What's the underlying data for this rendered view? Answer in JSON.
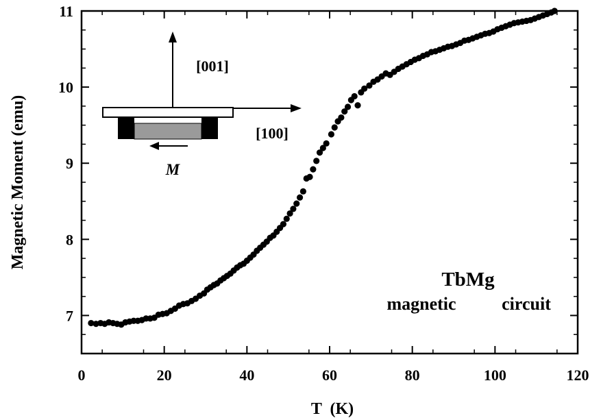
{
  "chart_data": {
    "type": "scatter",
    "xlabel": "T  (K)",
    "ylabel": "Magnetic Moment (emu)",
    "xlim": [
      0,
      120
    ],
    "ylim": [
      6.5,
      11
    ],
    "x_ticks": [
      0,
      20,
      40,
      60,
      80,
      100,
      120
    ],
    "y_ticks": [
      7,
      8,
      9,
      10,
      11
    ],
    "grid": false,
    "marker_color": "#000000",
    "annotations": {
      "sample": "TbMg",
      "mode_left": "magnetic",
      "mode_right": "circuit",
      "inset_axis_vertical": "[001]",
      "inset_axis_horizontal": "[100]",
      "inset_moment": "M"
    },
    "series": [
      {
        "points": [
          [
            2.3,
            6.9
          ],
          [
            3.5,
            6.89
          ],
          [
            4.6,
            6.9
          ],
          [
            5.6,
            6.89
          ],
          [
            6.6,
            6.91
          ],
          [
            7.6,
            6.9
          ],
          [
            8.6,
            6.89
          ],
          [
            9.6,
            6.88
          ],
          [
            10.6,
            6.91
          ],
          [
            11.6,
            6.92
          ],
          [
            12.6,
            6.93
          ],
          [
            13.6,
            6.93
          ],
          [
            14.6,
            6.94
          ],
          [
            15.6,
            6.96
          ],
          [
            16.6,
            6.96
          ],
          [
            17.6,
            6.97
          ],
          [
            18.6,
            7.01
          ],
          [
            19.6,
            7.02
          ],
          [
            20.6,
            7.03
          ],
          [
            21.6,
            7.06
          ],
          [
            22.6,
            7.09
          ],
          [
            23.6,
            7.13
          ],
          [
            24.6,
            7.15
          ],
          [
            25.6,
            7.16
          ],
          [
            26.6,
            7.19
          ],
          [
            27.6,
            7.22
          ],
          [
            28.6,
            7.26
          ],
          [
            29.6,
            7.29
          ],
          [
            30.4,
            7.34
          ],
          [
            31.2,
            7.37
          ],
          [
            32.0,
            7.4
          ],
          [
            32.8,
            7.42
          ],
          [
            33.6,
            7.46
          ],
          [
            34.4,
            7.49
          ],
          [
            35.2,
            7.52
          ],
          [
            36.0,
            7.55
          ],
          [
            36.8,
            7.59
          ],
          [
            37.6,
            7.63
          ],
          [
            38.4,
            7.66
          ],
          [
            39.2,
            7.68
          ],
          [
            40.0,
            7.72
          ],
          [
            40.8,
            7.76
          ],
          [
            41.6,
            7.8
          ],
          [
            42.4,
            7.85
          ],
          [
            43.2,
            7.89
          ],
          [
            44.0,
            7.93
          ],
          [
            44.8,
            7.97
          ],
          [
            45.6,
            8.02
          ],
          [
            46.4,
            8.05
          ],
          [
            47.2,
            8.1
          ],
          [
            48.0,
            8.15
          ],
          [
            48.8,
            8.2
          ],
          [
            49.6,
            8.27
          ],
          [
            50.4,
            8.34
          ],
          [
            51.2,
            8.4
          ],
          [
            52.0,
            8.47
          ],
          [
            52.8,
            8.55
          ],
          [
            53.6,
            8.63
          ],
          [
            54.4,
            8.8
          ],
          [
            55.2,
            8.82
          ],
          [
            56.0,
            8.92
          ],
          [
            56.8,
            9.03
          ],
          [
            57.6,
            9.14
          ],
          [
            58.4,
            9.2
          ],
          [
            59.2,
            9.26
          ],
          [
            60.4,
            9.38
          ],
          [
            61.2,
            9.47
          ],
          [
            62.0,
            9.55
          ],
          [
            62.8,
            9.6
          ],
          [
            63.6,
            9.68
          ],
          [
            64.4,
            9.74
          ],
          [
            65.2,
            9.83
          ],
          [
            66.0,
            9.88
          ],
          [
            66.8,
            9.76
          ],
          [
            67.6,
            9.93
          ],
          [
            68.4,
            9.98
          ],
          [
            69.6,
            10.02
          ],
          [
            70.6,
            10.07
          ],
          [
            71.6,
            10.1
          ],
          [
            72.6,
            10.14
          ],
          [
            73.6,
            10.18
          ],
          [
            74.6,
            10.16
          ],
          [
            75.6,
            10.2
          ],
          [
            76.6,
            10.24
          ],
          [
            77.6,
            10.27
          ],
          [
            78.6,
            10.3
          ],
          [
            79.6,
            10.33
          ],
          [
            80.6,
            10.36
          ],
          [
            81.6,
            10.38
          ],
          [
            82.6,
            10.41
          ],
          [
            83.6,
            10.43
          ],
          [
            84.6,
            10.46
          ],
          [
            85.6,
            10.47
          ],
          [
            86.6,
            10.49
          ],
          [
            87.6,
            10.51
          ],
          [
            88.6,
            10.53
          ],
          [
            89.6,
            10.54
          ],
          [
            90.6,
            10.56
          ],
          [
            91.6,
            10.58
          ],
          [
            92.6,
            10.61
          ],
          [
            93.6,
            10.62
          ],
          [
            94.6,
            10.64
          ],
          [
            95.6,
            10.66
          ],
          [
            96.6,
            10.68
          ],
          [
            97.6,
            10.7
          ],
          [
            98.6,
            10.71
          ],
          [
            99.6,
            10.73
          ],
          [
            100.6,
            10.76
          ],
          [
            101.6,
            10.78
          ],
          [
            102.6,
            10.8
          ],
          [
            103.6,
            10.82
          ],
          [
            104.6,
            10.84
          ],
          [
            105.6,
            10.85
          ],
          [
            106.6,
            10.86
          ],
          [
            107.6,
            10.87
          ],
          [
            108.6,
            10.88
          ],
          [
            109.6,
            10.9
          ],
          [
            110.6,
            10.92
          ],
          [
            111.6,
            10.94
          ],
          [
            112.6,
            10.96
          ],
          [
            113.6,
            10.98
          ],
          [
            114.4,
            11.0
          ]
        ]
      }
    ]
  }
}
